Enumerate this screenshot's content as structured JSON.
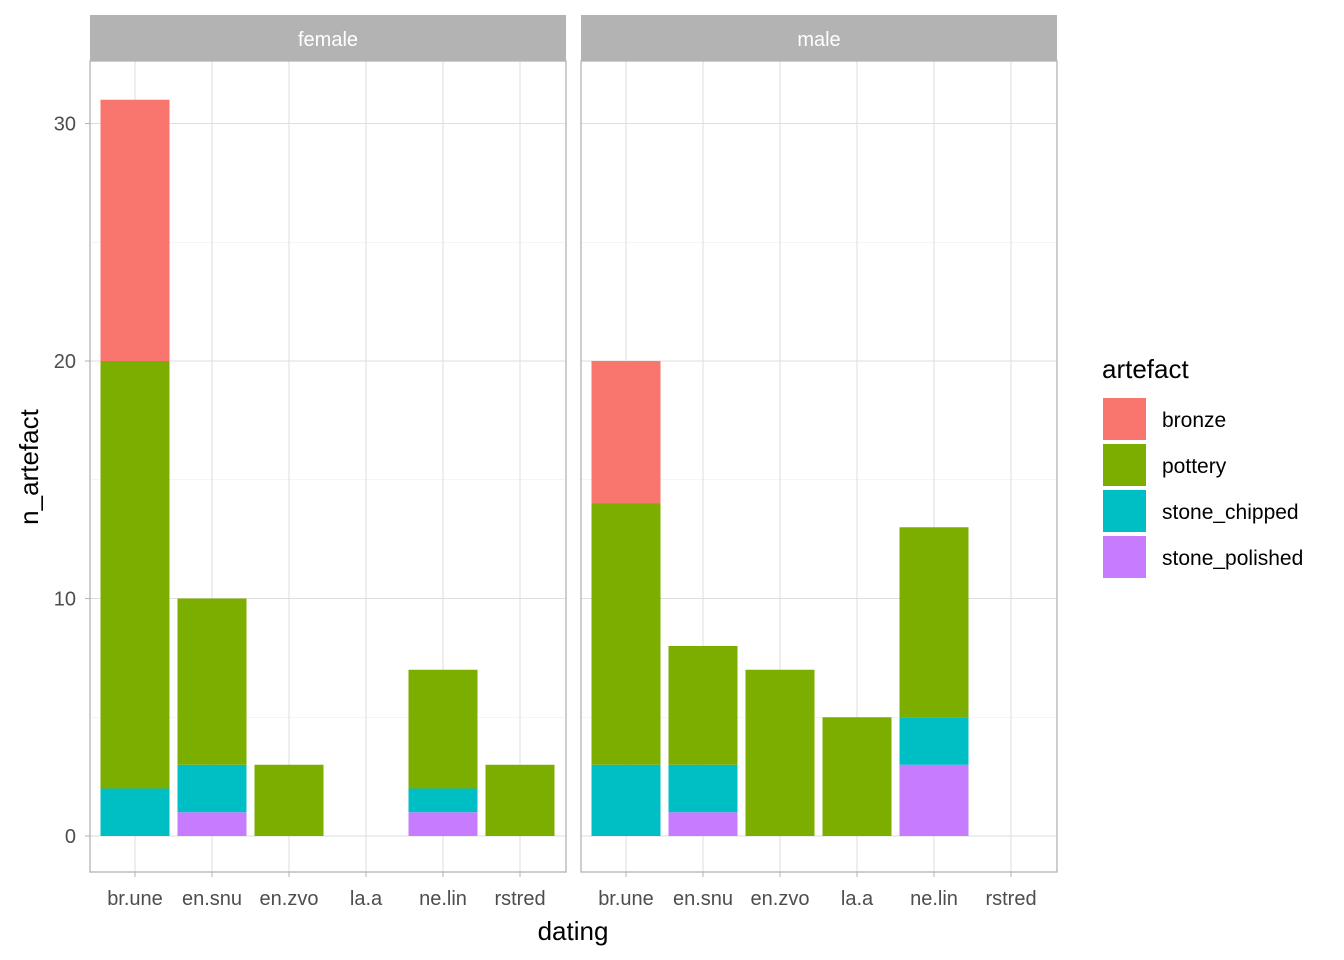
{
  "chart_data": {
    "type": "bar",
    "stacked": true,
    "xlabel": "dating",
    "ylabel": "n_artefact",
    "ylim": [
      0,
      33
    ],
    "yticks": [
      0,
      10,
      20,
      30
    ],
    "categories": [
      "br.une",
      "en.snu",
      "en.zvo",
      "la.a",
      "ne.lin",
      "rstred"
    ],
    "legend": {
      "title": "artefact",
      "position": "right",
      "entries": [
        "bronze",
        "pottery",
        "stone_chipped",
        "stone_polished"
      ]
    },
    "colors": {
      "bronze": "#F8766D",
      "pottery": "#7CAE00",
      "stone_chipped": "#00BFC4",
      "stone_polished": "#C77CFF"
    },
    "panels": [
      {
        "name": "female",
        "series": [
          {
            "name": "stone_polished",
            "values": [
              0,
              1,
              0,
              0,
              1,
              0
            ]
          },
          {
            "name": "stone_chipped",
            "values": [
              2,
              2,
              0,
              0,
              1,
              0
            ]
          },
          {
            "name": "pottery",
            "values": [
              18,
              7,
              3,
              0,
              5,
              3
            ]
          },
          {
            "name": "bronze",
            "values": [
              11,
              0,
              0,
              0,
              0,
              0
            ]
          }
        ]
      },
      {
        "name": "male",
        "series": [
          {
            "name": "stone_polished",
            "values": [
              0,
              1,
              0,
              0,
              3,
              0
            ]
          },
          {
            "name": "stone_chipped",
            "values": [
              3,
              2,
              0,
              0,
              2,
              0
            ]
          },
          {
            "name": "pottery",
            "values": [
              11,
              5,
              7,
              5,
              8,
              0
            ]
          },
          {
            "name": "bronze",
            "values": [
              6,
              0,
              0,
              0,
              0,
              0
            ]
          }
        ]
      }
    ]
  }
}
